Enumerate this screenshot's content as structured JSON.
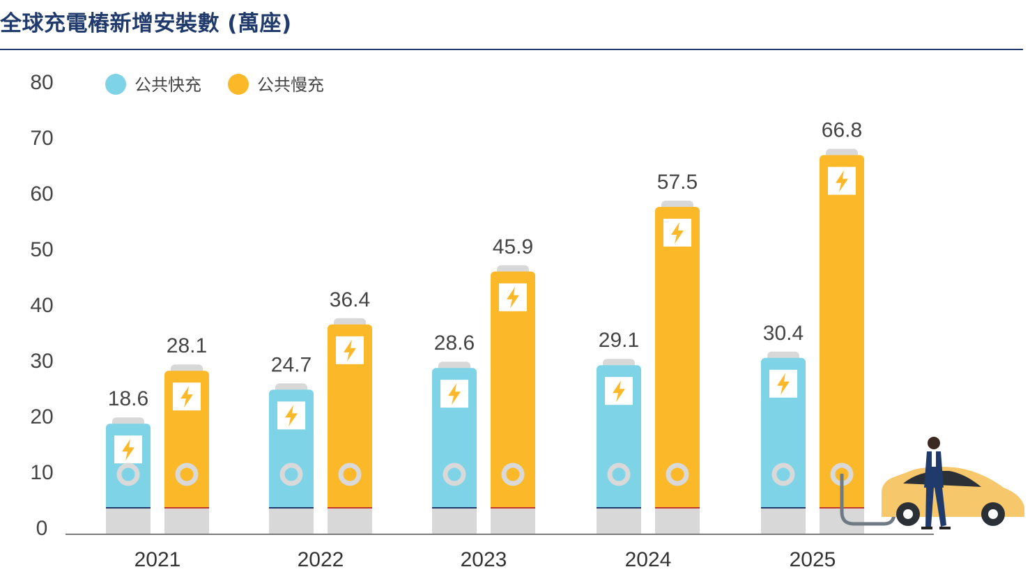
{
  "chart_data": {
    "type": "bar",
    "title": "全球充電樁新增安裝數 (萬座)",
    "categories": [
      "2021",
      "2022",
      "2023",
      "2024",
      "2025"
    ],
    "series": [
      {
        "name": "公共快充",
        "color": "#7fd3e6",
        "values": [
          18.6,
          24.7,
          28.6,
          29.1,
          30.4
        ]
      },
      {
        "name": "公共慢充",
        "color": "#fbb829",
        "values": [
          28.1,
          36.4,
          45.9,
          57.5,
          66.8
        ]
      }
    ],
    "y_ticks": [
      0,
      10,
      20,
      30,
      40,
      50,
      60,
      70,
      80
    ],
    "ylim": [
      0,
      80
    ],
    "legend_position": "top-left",
    "grid": false
  },
  "colors": {
    "title": "#1f3a6b",
    "battery_cap": "#d8d8d8",
    "bolt": "#fbb829",
    "fast_base_line": "#1f3a6b",
    "slow_base_line": "#c0392b",
    "car_body": "#f6c76b"
  },
  "icons": [
    "lightning-bolt-icon",
    "charging-plug-icon",
    "electric-car-icon",
    "person-icon"
  ]
}
